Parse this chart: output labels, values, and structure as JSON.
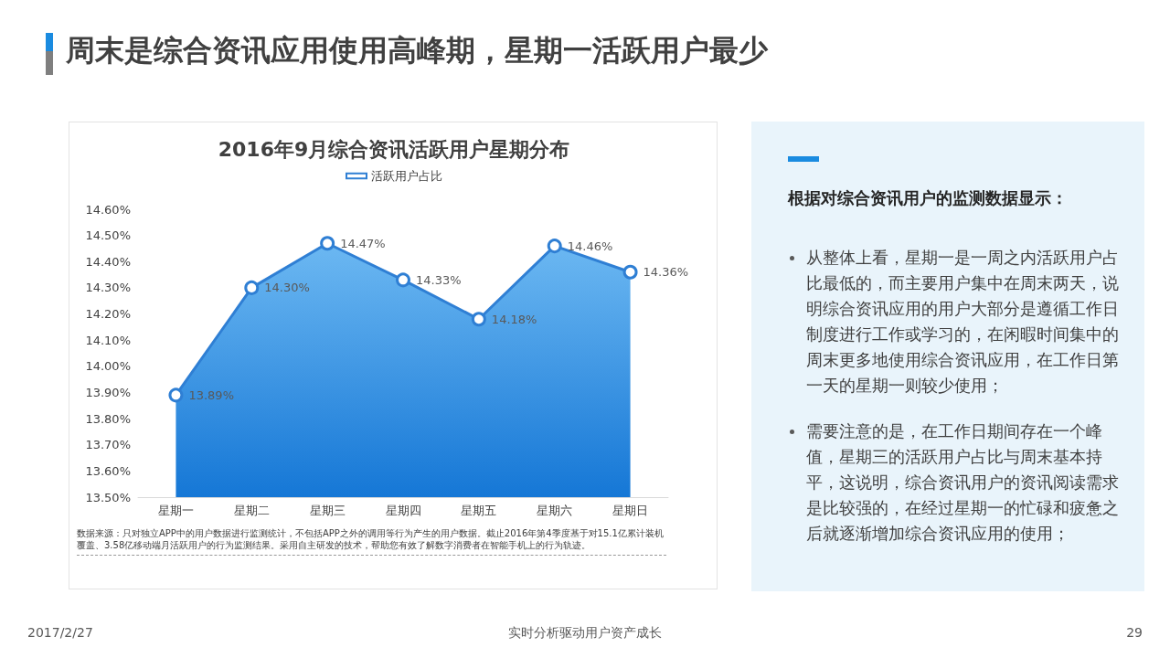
{
  "chart_data": {
    "type": "area",
    "title": "2016年9月综合资讯活跃用户星期分布",
    "categories": [
      "星期一",
      "星期二",
      "星期三",
      "星期四",
      "星期五",
      "星期六",
      "星期日"
    ],
    "series": [
      {
        "name": "活跃用户占比",
        "color": "#2f7fd4",
        "values": [
          13.89,
          14.3,
          14.47,
          14.33,
          14.18,
          14.46,
          14.36
        ],
        "value_labels": [
          "13.89%",
          "14.30%",
          "14.47%",
          "14.33%",
          "14.18%",
          "14.46%",
          "14.36%"
        ]
      }
    ],
    "ylim": [
      13.5,
      14.6
    ],
    "yticks": [
      {
        "value": 13.5,
        "label": "13.50%"
      },
      {
        "value": 13.6,
        "label": "13.60%"
      },
      {
        "value": 13.7,
        "label": "13.70%"
      },
      {
        "value": 13.8,
        "label": "13.80%"
      },
      {
        "value": 13.9,
        "label": "13.90%"
      },
      {
        "value": 14.0,
        "label": "14.00%"
      },
      {
        "value": 14.1,
        "label": "14.10%"
      },
      {
        "value": 14.2,
        "label": "14.20%"
      },
      {
        "value": 14.3,
        "label": "14.30%"
      },
      {
        "value": 14.4,
        "label": "14.40%"
      },
      {
        "value": 14.5,
        "label": "14.50%"
      },
      {
        "value": 14.6,
        "label": "14.60%"
      }
    ],
    "grid": false,
    "legend": "top",
    "marker": "circle",
    "line_style": "solid",
    "annotations": [
      "周末是综合资讯应用使用高峰期，星期一活跃用户最少",
      "数据来源：只对独立APP中的用户数据进行监测统计，不包括APP之外的调用等行为产生的用户数据。截止2016年第4季度基于对15.1亿累计装机覆盖、3.58亿移动端月活跃用户的行为监测结果。采用自主研发的技术，帮助您有效了解数字消费者在智能手机上的行为轨迹。",
      "根据对综合资讯用户的监测数据显示：",
      "从整体上看，星期一是一周之内活跃用户占比最低的，而主要用户集中在周末两天，说明综合资讯应用的用户大部分是遵循工作日制度进行工作或学习的，在闲暇时间集中的周末更多地使用综合资讯应用，在工作日第一天的星期一则较少使用；",
      "需要注意的是，在工作日期间存在一个峰值，星期三的活跃用户占比与周末基本持平，这说明，综合资讯用户的资讯阅读需求是比较强的，在经过星期一的忙碌和疲惫之后就逐渐增加综合资讯应用的使用；",
      "2017/2/27",
      "实时分析驱动用户资产成长",
      "29"
    ]
  }
}
